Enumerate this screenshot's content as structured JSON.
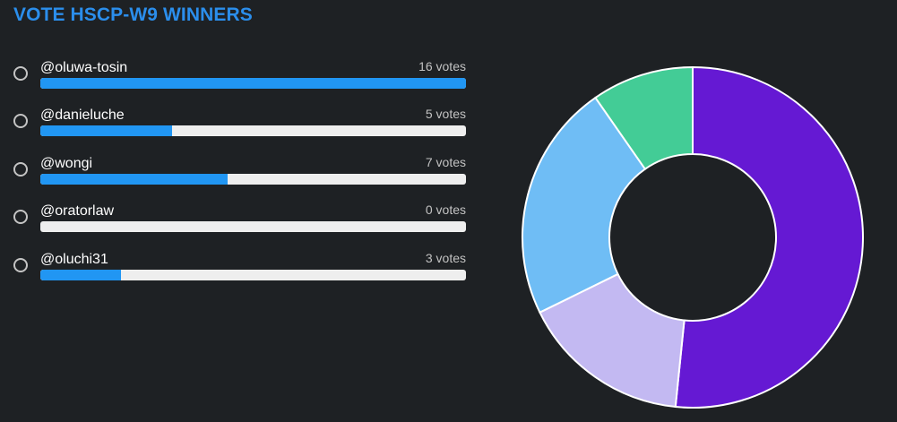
{
  "poll": {
    "title": "VOTE HSCP-W9 WINNERS"
  },
  "options": [
    {
      "label": "@oluwa-tosin",
      "votes_text": "16 votes",
      "votes": 16,
      "fill": 1.0
    },
    {
      "label": "@danieluche",
      "votes_text": "5 votes",
      "votes": 5,
      "fill": 0.31
    },
    {
      "label": "@wongi",
      "votes_text": "7 votes",
      "votes": 7,
      "fill": 0.44
    },
    {
      "label": "@oratorlaw",
      "votes_text": "0 votes",
      "votes": 0,
      "fill": 0.0
    },
    {
      "label": "@oluchi31",
      "votes_text": "3 votes",
      "votes": 3,
      "fill": 0.19
    }
  ],
  "colors": {
    "title": "#2b8eec",
    "bar_fill": "#2196f3",
    "bar_track": "#eeeeee",
    "background": "#1e2124"
  },
  "chart_data": {
    "type": "pie",
    "categories": [
      "@oluwa-tosin",
      "@danieluche",
      "@wongi",
      "@oratorlaw",
      "@oluchi31"
    ],
    "values": [
      16,
      5,
      7,
      0,
      3
    ],
    "colors": [
      "#6519d3",
      "#c3b9f2",
      "#6fbdf5",
      "#9aa0a6",
      "#43cc96"
    ],
    "donut": true,
    "legend": "none"
  }
}
